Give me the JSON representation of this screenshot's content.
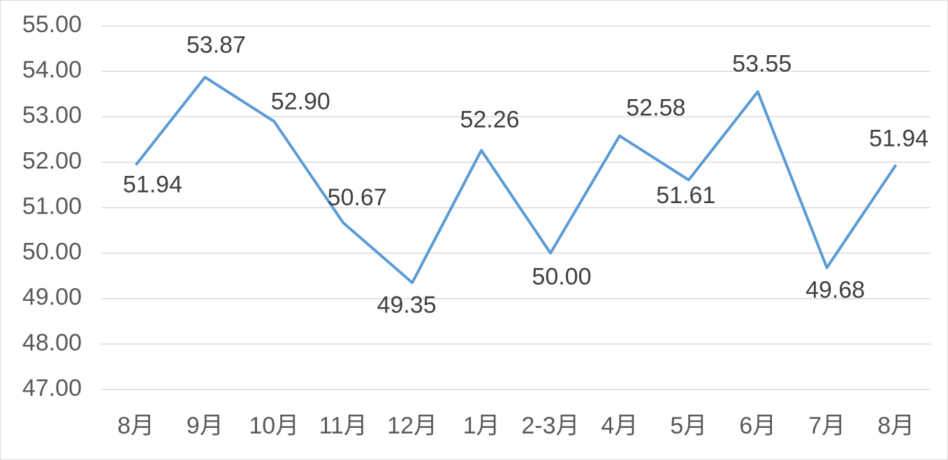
{
  "chart_data": {
    "type": "line",
    "categories": [
      "8月",
      "9月",
      "10月",
      "11月",
      "12月",
      "1月",
      "2-3月",
      "4月",
      "5月",
      "6月",
      "7月",
      "8月"
    ],
    "values": [
      51.94,
      53.87,
      52.9,
      50.67,
      49.35,
      52.26,
      50,
      52.58,
      51.61,
      53.55,
      49.68,
      51.94
    ],
    "value_labels": [
      "51.94",
      "53.87",
      "52.90",
      "50.67",
      "49.35",
      "52.26",
      "50.00",
      "52.58",
      "51.61",
      "53.55",
      "49.68",
      "51.94"
    ],
    "color": "#5b9bd5",
    "ylim": [
      47,
      55
    ],
    "yticks": [
      {
        "value": 47,
        "label": "47.00"
      },
      {
        "value": 48,
        "label": "48.00"
      },
      {
        "value": 49,
        "label": "49.00"
      },
      {
        "value": 50,
        "label": "50.00"
      },
      {
        "value": 51,
        "label": "51.00"
      },
      {
        "value": 52,
        "label": "52.00"
      },
      {
        "value": 53,
        "label": "53.00"
      },
      {
        "value": 54,
        "label": "54.00"
      },
      {
        "value": 55,
        "label": "55.00"
      }
    ],
    "grid": true
  }
}
